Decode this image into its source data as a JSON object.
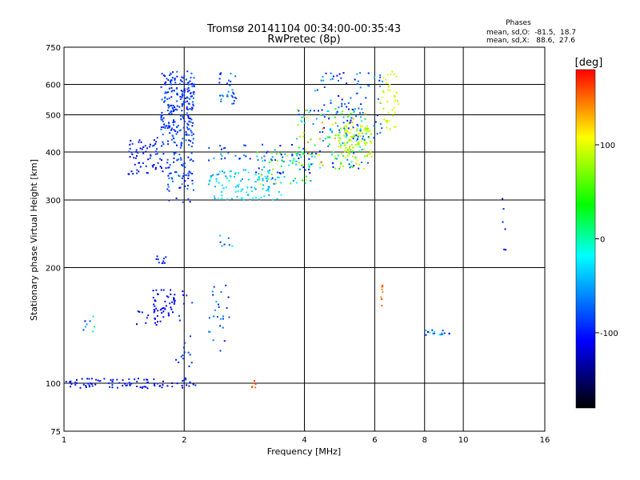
{
  "chart_data": {
    "type": "scatter",
    "title": "Tromsø 20141104 00:34:00-00:35:43",
    "subtitle": "RwPretec (8p)",
    "xlabel": "Frequency [MHz]",
    "ylabel": "Stationary phase Virtual Height [km]",
    "x_scale": "log",
    "y_scale": "log",
    "xlim": [
      1,
      16
    ],
    "ylim": [
      75,
      750
    ],
    "x_ticks": [
      1,
      2,
      4,
      6,
      8,
      10,
      16
    ],
    "y_ticks": [
      75,
      100,
      200,
      300,
      400,
      500,
      600,
      750
    ],
    "grid_x": [
      2,
      4,
      6,
      8,
      10
    ],
    "grid_y": [
      100,
      200,
      300,
      400,
      500,
      600
    ],
    "stats": {
      "heading": "Phases",
      "line_o": "mean, sd,O:  -81.5,  18.7",
      "line_x": "mean, sd,X:   88.6,  27.6"
    },
    "colorbar": {
      "label": "[deg]",
      "range": [
        -180,
        180
      ],
      "ticks": [
        100,
        0,
        -100
      ],
      "colors": [
        "#ff0000",
        "#ffff00",
        "#00ff00",
        "#00ffff",
        "#0000ff",
        "#000000"
      ]
    },
    "series": [
      {
        "clusters": [
          {
            "f": [
              1.75,
              2.12
            ],
            "h": [
              440,
              650
            ],
            "phase": [
              -110,
              -70
            ],
            "n": 220
          },
          {
            "f": [
              1.45,
              1.8
            ],
            "h": [
              350,
              440
            ],
            "phase": [
              -115,
              -85
            ],
            "n": 70
          },
          {
            "f": [
              1.8,
              2.12
            ],
            "h": [
              295,
              440
            ],
            "phase": [
              -110,
              -60
            ],
            "n": 90
          },
          {
            "f": [
              2.3,
              3.5
            ],
            "h": [
              300,
              360
            ],
            "phase": [
              -60,
              -10
            ],
            "n": 110
          },
          {
            "f": [
              2.3,
              4.0
            ],
            "h": [
              380,
              420
            ],
            "phase": [
              -110,
              -40
            ],
            "n": 40
          },
          {
            "f": [
              3.0,
              4.2
            ],
            "h": [
              330,
              400
            ],
            "phase": [
              -120,
              120
            ],
            "n": 70
          },
          {
            "f": [
              3.8,
              5.8
            ],
            "h": [
              360,
              520
            ],
            "phase": [
              -120,
              140
            ],
            "n": 180
          },
          {
            "f": [
              4.8,
              5.9
            ],
            "h": [
              380,
              470
            ],
            "phase": [
              70,
              110
            ],
            "n": 90
          },
          {
            "f": [
              4.2,
              6.3
            ],
            "h": [
              430,
              650
            ],
            "phase": [
              -110,
              -40
            ],
            "n": 90
          },
          {
            "f": [
              6.2,
              6.9
            ],
            "h": [
              450,
              650
            ],
            "phase": [
              80,
              110
            ],
            "n": 40
          },
          {
            "f": [
              2.45,
              2.7
            ],
            "h": [
              530,
              650
            ],
            "phase": [
              -100,
              -50
            ],
            "n": 30
          },
          {
            "f": [
              1.01,
              2.2
            ],
            "h": [
              97,
              103
            ],
            "phase": [
              -115,
              -90
            ],
            "n": 90
          },
          {
            "f": [
              1.65,
              1.9
            ],
            "h": [
              150,
              175
            ],
            "phase": [
              -120,
              -100
            ],
            "n": 45
          },
          {
            "f": [
              1.5,
              1.8
            ],
            "h": [
              140,
              155
            ],
            "phase": [
              -120,
              -100
            ],
            "n": 15
          },
          {
            "f": [
              1.7,
              1.8
            ],
            "h": [
              205,
              215
            ],
            "phase": [
              -110,
              -90
            ],
            "n": 10
          },
          {
            "f": [
              2.3,
              2.6
            ],
            "h": [
              120,
              180
            ],
            "phase": [
              -110,
              -40
            ],
            "n": 25
          },
          {
            "f": [
              1.9,
              2.1
            ],
            "h": [
              110,
              175
            ],
            "phase": [
              -110,
              -80
            ],
            "n": 20
          },
          {
            "f": [
              1.1,
              1.2
            ],
            "h": [
              135,
              150
            ],
            "phase": [
              -110,
              10
            ],
            "n": 8
          },
          {
            "f": [
              8.0,
              9.3
            ],
            "h": [
              133,
              138
            ],
            "phase": [
              -110,
              -20
            ],
            "n": 18
          },
          {
            "f": [
              6.2,
              6.3
            ],
            "h": [
              150,
              195
            ],
            "phase": [
              140,
              170
            ],
            "n": 8
          },
          {
            "f": [
              2.45,
              2.65
            ],
            "h": [
              225,
              245
            ],
            "phase": [
              -100,
              20
            ],
            "n": 8
          },
          {
            "f": [
              12.5,
              12.8
            ],
            "h": [
              215,
              305
            ],
            "phase": [
              -120,
              -80
            ],
            "n": 6
          },
          {
            "f": [
              2.95,
              3.05
            ],
            "h": [
              97,
              102
            ],
            "phase": [
              140,
              170
            ],
            "n": 6
          }
        ]
      }
    ]
  }
}
